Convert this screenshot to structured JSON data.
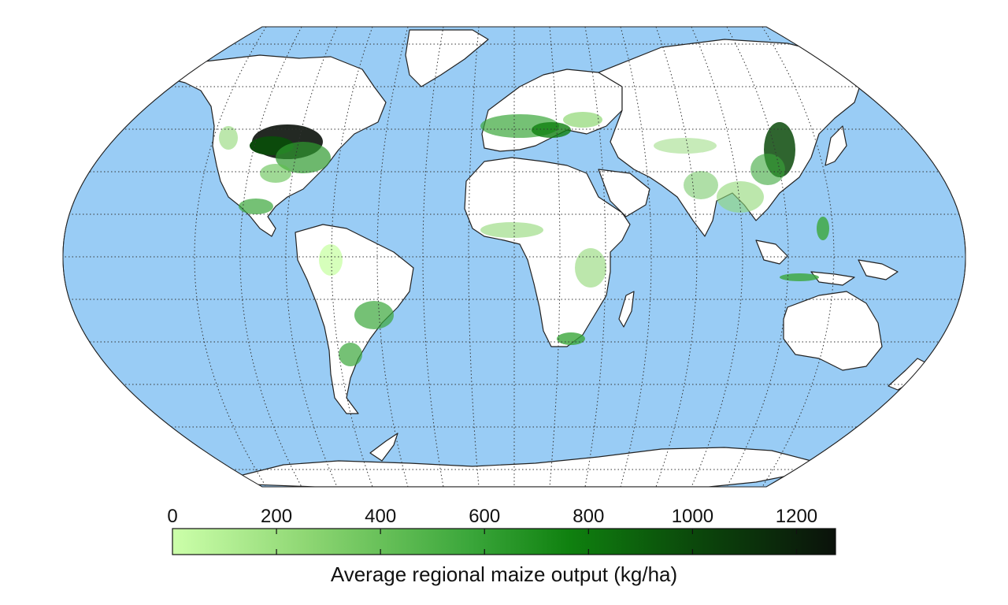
{
  "colors": {
    "ocean": "#99ccf5",
    "land": "#ffffff",
    "coast": "#222222",
    "grid": "#333333",
    "crop_low": "#ccffaa",
    "crop_mid": "#118811",
    "crop_high": "#0a1a0a"
  },
  "colorbar": {
    "title": "Average regional maize output (kg/ha)",
    "min": 0,
    "max": 1275,
    "ticks": [
      {
        "value": 0,
        "label": "0"
      },
      {
        "value": 200,
        "label": "200"
      },
      {
        "value": 400,
        "label": "400"
      },
      {
        "value": 600,
        "label": "600"
      },
      {
        "value": 800,
        "label": "800"
      },
      {
        "value": 1000,
        "label": "1000"
      },
      {
        "value": 1200,
        "label": "1200"
      }
    ]
  },
  "map": {
    "projection": "robinson",
    "graticule_step_deg": 15,
    "grid_style": "dotted"
  }
}
